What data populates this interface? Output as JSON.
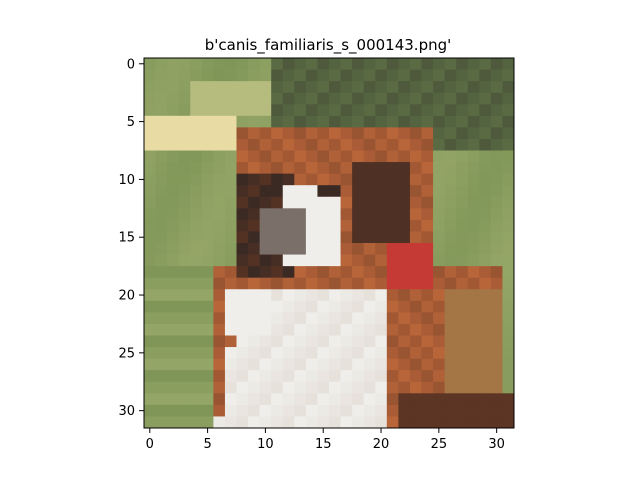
{
  "title": "b'canis_familiaris_s_000143.png'",
  "image": {
    "description_icon": "pixelated-dog-photo",
    "grid_size": 32,
    "palette": {
      "grass_light": "#9fae6e",
      "grass_mid": "#7f9658",
      "grass_dark": "#5f7447",
      "bg_dark": "#4f5a3d",
      "cream": "#e8dca4",
      "fur_brown": "#b8653a",
      "fur_dark": "#6b3a24",
      "white": "#efeeea",
      "shadow": "#3b2a24",
      "collar_red": "#c53a35"
    }
  },
  "axes": {
    "x_ticks": [
      "0",
      "5",
      "10",
      "15",
      "20",
      "25",
      "30"
    ],
    "y_ticks": [
      "0",
      "5",
      "10",
      "15",
      "20",
      "25",
      "30"
    ],
    "x_tick_values": [
      0,
      5,
      10,
      15,
      20,
      25,
      30
    ],
    "y_tick_values": [
      0,
      5,
      10,
      15,
      20,
      25,
      30
    ],
    "xlim": [
      -0.5,
      31.5
    ],
    "ylim": [
      31.5,
      -0.5
    ]
  }
}
